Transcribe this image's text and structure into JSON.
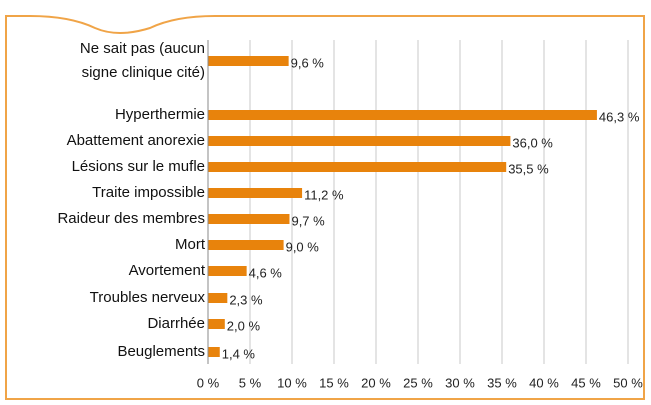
{
  "chart_data": {
    "type": "bar",
    "orientation": "horizontal",
    "categories": [
      "Ne sait pas (aucun signe clinique cité)",
      "Hyperthermie",
      "Abattement anorexie",
      "Lésions sur le mufle",
      "Traite impossible",
      "Raideur des membres",
      "Mort",
      "Avortement",
      "Troubles nerveux",
      "Diarrhée",
      "Beuglements"
    ],
    "values": [
      9.6,
      46.3,
      36.0,
      35.5,
      11.2,
      9.7,
      9.0,
      4.6,
      2.3,
      2.0,
      1.4
    ],
    "value_labels": [
      "9,6 %",
      "46,3 %",
      "36,0 %",
      "35,5 %",
      "11,2 %",
      "9,7 %",
      "9,0 %",
      "4,6 %",
      "2,3 %",
      "2,0 %",
      "1,4 %"
    ],
    "color": "#e8830c",
    "xlim": [
      0,
      50
    ],
    "xticks": [
      {
        "value": 0,
        "label": "0 %"
      },
      {
        "value": 5,
        "label": "5 %"
      },
      {
        "value": 10,
        "label": "10 %"
      },
      {
        "value": 15,
        "label": "15 %"
      },
      {
        "value": 20,
        "label": "20 %"
      },
      {
        "value": 25,
        "label": "25 %"
      },
      {
        "value": 30,
        "label": "30 %"
      },
      {
        "value": 35,
        "label": "35 %"
      },
      {
        "value": 40,
        "label": "40 %"
      },
      {
        "value": 45,
        "label": "45 %"
      },
      {
        "value": 50,
        "label": "50 %"
      }
    ],
    "grid": true
  }
}
